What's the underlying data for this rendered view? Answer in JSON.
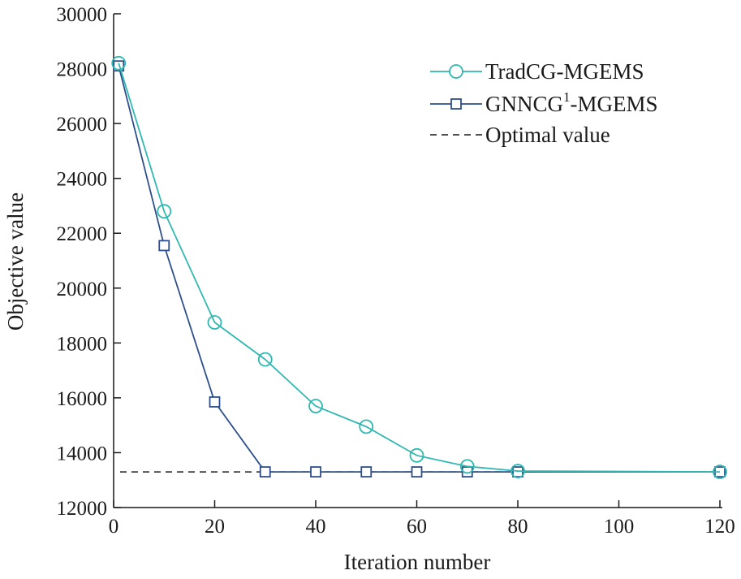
{
  "chart_data": {
    "type": "line",
    "xlabel": "Iteration number",
    "ylabel": "Objective value",
    "xlim": [
      0,
      120
    ],
    "ylim": [
      12000,
      30000
    ],
    "xticks": [
      0,
      20,
      40,
      60,
      80,
      100,
      120
    ],
    "yticks": [
      12000,
      14000,
      16000,
      18000,
      20000,
      22000,
      24000,
      26000,
      28000,
      30000
    ],
    "grid": false,
    "legend_position": "top-right",
    "series": [
      {
        "name": "TradCG-MGEMS",
        "marker": "circle",
        "color": "#2fb8b0",
        "x": [
          1,
          10,
          20,
          30,
          40,
          50,
          60,
          70,
          80,
          120
        ],
        "y": [
          28200,
          22800,
          18750,
          17400,
          15700,
          14950,
          13900,
          13500,
          13330,
          13300
        ]
      },
      {
        "name_main": "GNNCG",
        "name_sup": "1",
        "name_tail": "-MGEMS",
        "marker": "square",
        "color": "#2d4f8c",
        "x": [
          1,
          10,
          20,
          30,
          40,
          50,
          60,
          70,
          80,
          120
        ],
        "y": [
          28100,
          21550,
          15850,
          13300,
          13300,
          13300,
          13300,
          13300,
          13300,
          13300
        ]
      }
    ],
    "reference_line": {
      "name": "Optimal value",
      "y": 13300,
      "style": "dashed",
      "color": "#1a1a1a"
    }
  }
}
